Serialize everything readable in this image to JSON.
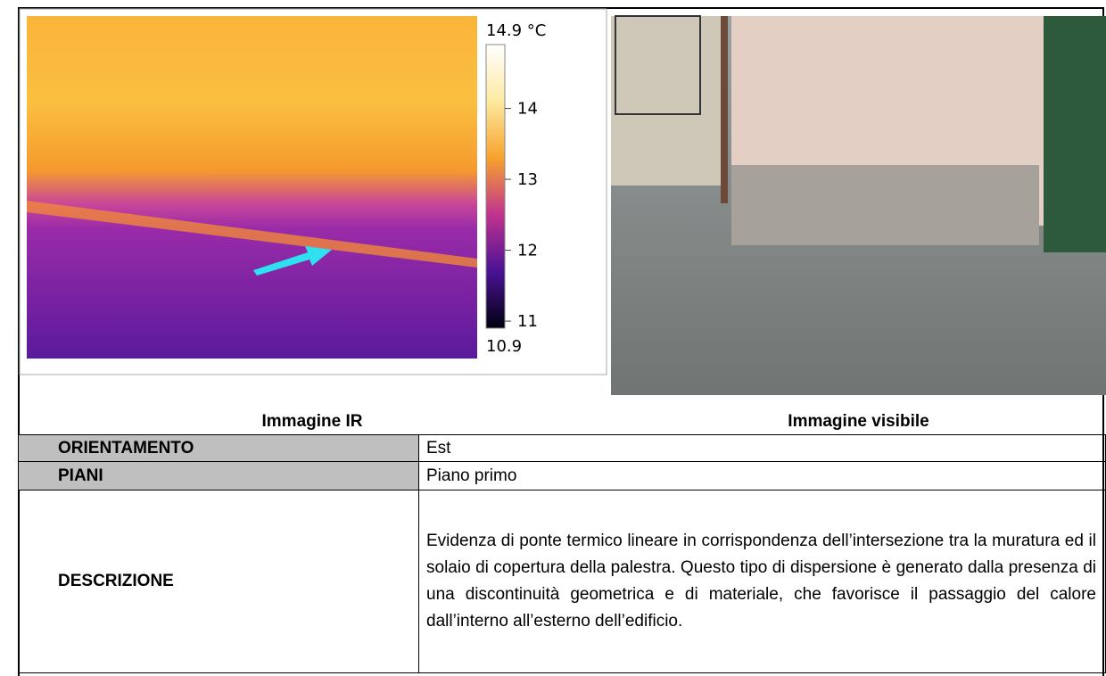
{
  "ir_image": {
    "colorbar": {
      "max": {
        "value": 14.9,
        "label": "14.9 °C"
      },
      "min": 10.9,
      "ticks": [
        14,
        13,
        12,
        11
      ]
    },
    "caption": "Immagine IR"
  },
  "visible_image": {
    "caption": "Immagine visibile"
  },
  "table": {
    "rows": [
      [
        "ORIENTAMENTO",
        "Est"
      ],
      [
        "PIANI",
        "Piano primo"
      ],
      [
        "DESCRIZIONE",
        "Evidenza di ponte termico lineare in corrispondenza dell’intersezione tra la muratura ed il solaio di copertura della palestra. Questo tipo di dispersione è generato dalla presenza di una discontinuità geometrica e di materiale, che favorisce il passaggio del calore dall’interno all’esterno dell’edificio."
      ]
    ]
  }
}
